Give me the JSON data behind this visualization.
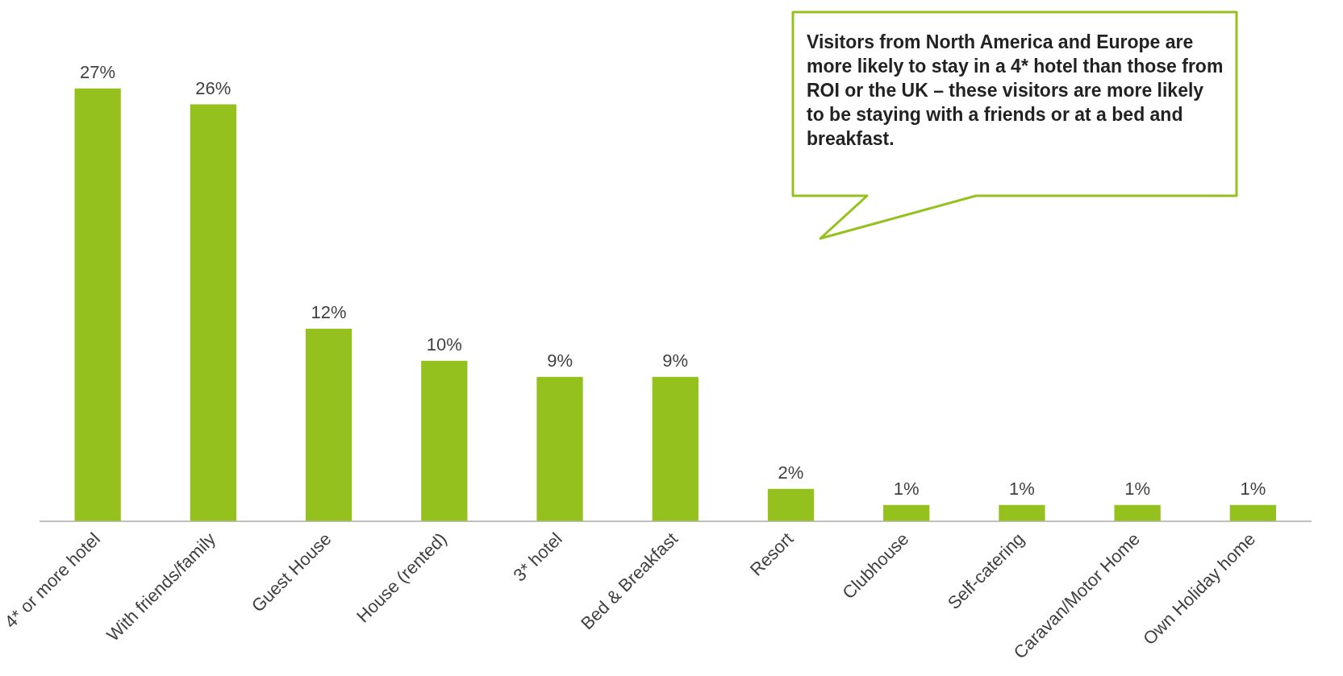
{
  "chart_data": {
    "type": "bar",
    "categories": [
      "4* or more hotel",
      "With friends/family",
      "Guest House",
      "House (rented)",
      "3* hotel",
      "Bed & Breakfast",
      "Resort",
      "Clubhouse",
      "Self-catering",
      "Caravan/Motor Home",
      "Own Holiday home"
    ],
    "values": [
      27,
      26,
      12,
      10,
      9,
      9,
      2,
      1,
      1,
      1,
      1
    ],
    "value_labels": [
      "27%",
      "26%",
      "12%",
      "10%",
      "9%",
      "9%",
      "2%",
      "1%",
      "1%",
      "1%",
      "1%"
    ],
    "color": "#95c11f",
    "grid": false,
    "legend": false,
    "annotations": [
      "Visitors from North America and Europe are more likely to stay in a 4* hotel than those from ROI or the UK – these visitors are more likely to be staying with a friends or at a bed and breakfast."
    ]
  }
}
